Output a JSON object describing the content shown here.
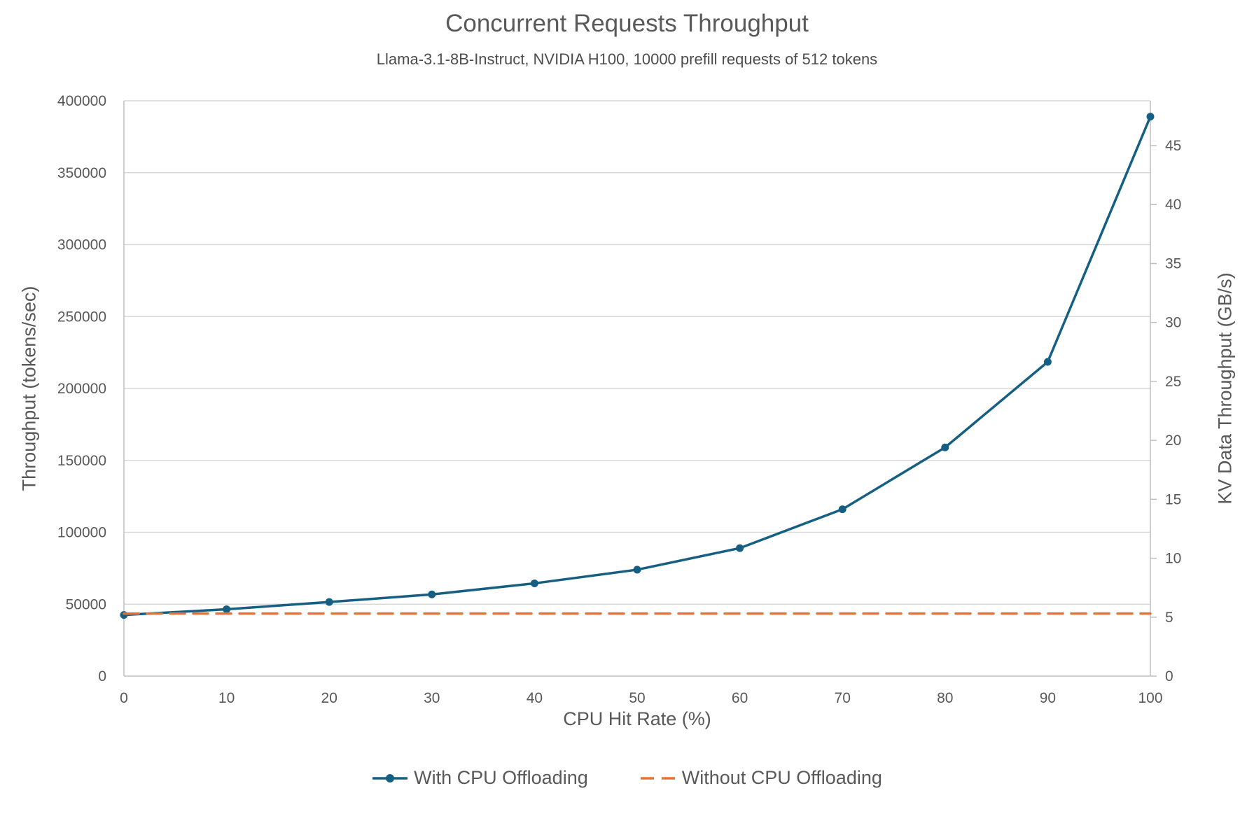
{
  "chart_data": {
    "type": "line",
    "title": "Concurrent Requests Throughput",
    "subtitle": "Llama-3.1-8B-Instruct, NVIDIA H100, 10000 prefill requests of 512 tokens",
    "xlabel": "CPU Hit Rate (%)",
    "ylabel": "Throughput (tokens/sec)",
    "y2label": "KV Data Throughput (GB/s)",
    "x": [
      0,
      10,
      20,
      30,
      40,
      50,
      60,
      70,
      80,
      90,
      100
    ],
    "series": [
      {
        "name": "With CPU Offloading",
        "color": "#156082",
        "line": "solid",
        "marker": "circle",
        "axis": "left",
        "values": [
          42500,
          46500,
          51500,
          56800,
          64500,
          74000,
          89000,
          116000,
          159000,
          218500,
          389000
        ]
      },
      {
        "name": "Without CPU Offloading",
        "color": "#E97132",
        "line": "dashed",
        "marker": "none",
        "axis": "left",
        "values": [
          43500,
          43500,
          43500,
          43500,
          43500,
          43500,
          43500,
          43500,
          43500,
          43500,
          43500
        ]
      }
    ],
    "xlim": [
      0,
      100
    ],
    "ylim": [
      0,
      400000
    ],
    "y2lim": [
      0,
      48.8
    ],
    "xticks": [
      0,
      10,
      20,
      30,
      40,
      50,
      60,
      70,
      80,
      90,
      100
    ],
    "yticks": [
      0,
      50000,
      100000,
      150000,
      200000,
      250000,
      300000,
      350000,
      400000
    ],
    "y2ticks": [
      0,
      5,
      10,
      15,
      20,
      25,
      30,
      35,
      40,
      45
    ],
    "grid": "horizontal",
    "legend_position": "bottom"
  },
  "colors": {
    "text": "#595959",
    "grid": "#D9D9D9",
    "axis": "#BFBFBF",
    "background": "#FFFFFF",
    "series_blue": "#156082",
    "series_orange": "#E97132"
  }
}
